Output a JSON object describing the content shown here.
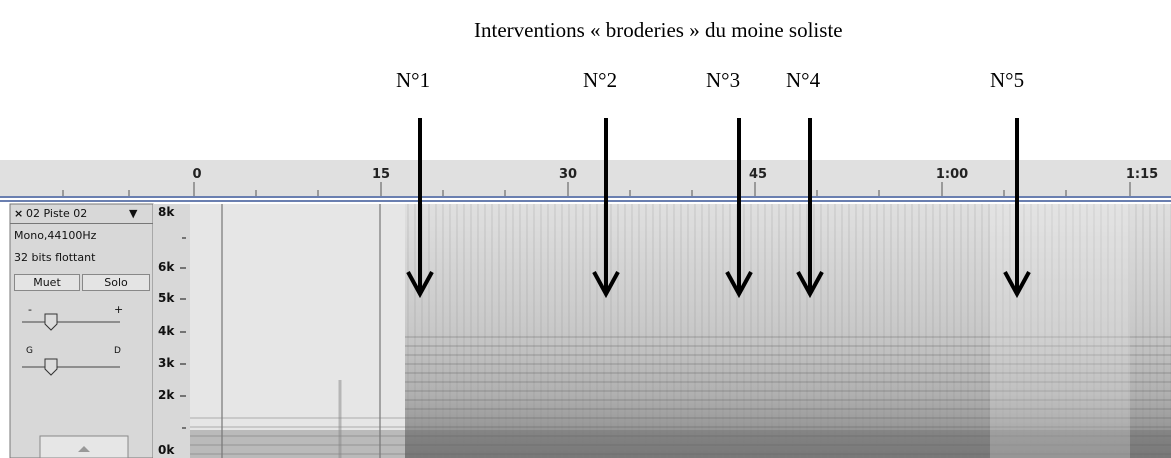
{
  "annotation": {
    "title": "Interventions « broderies » du moine soliste",
    "markers": [
      "N°1",
      "N°2",
      "N°3",
      "N°4",
      "N°5"
    ]
  },
  "timeline": {
    "labels": [
      "0",
      "15",
      "30",
      "45",
      "1:00",
      "1:15"
    ]
  },
  "track": {
    "close": "×",
    "name": "02 Piste 02",
    "menu": "▼",
    "format": "Mono,44100Hz",
    "sample": "32 bits flottant",
    "mute": "Muet",
    "solo": "Solo",
    "gain_min": "-",
    "gain_max": "+",
    "pan_left": "G",
    "pan_right": "D"
  },
  "frequency_axis": {
    "labels": [
      "8k",
      "6k",
      "5k",
      "4k",
      "3k",
      "2k",
      "0k"
    ]
  }
}
